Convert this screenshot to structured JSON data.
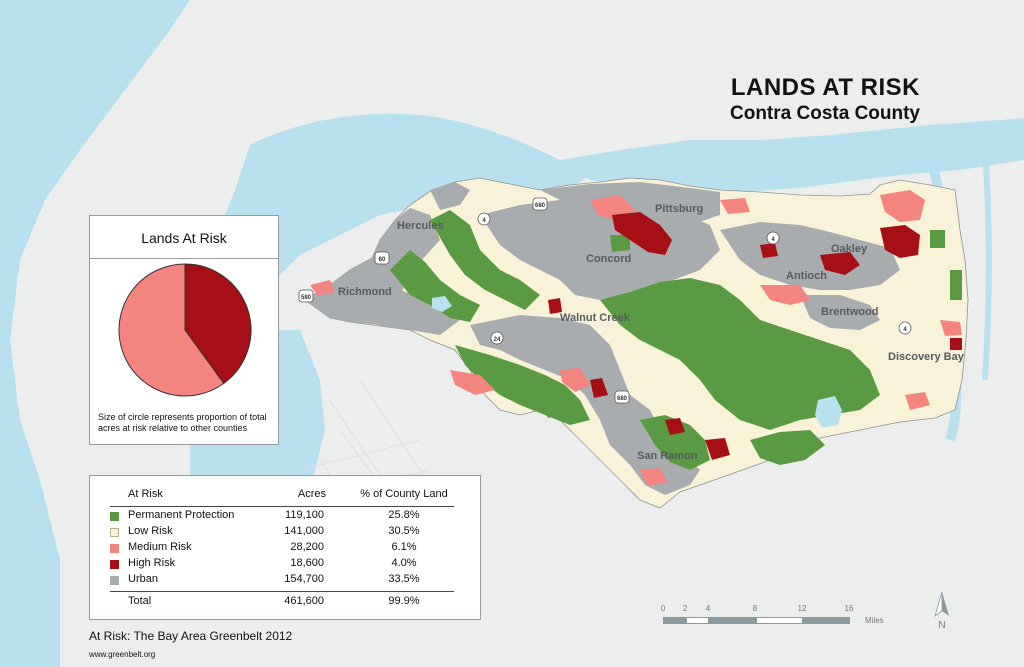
{
  "title": "LANDS AT RISK",
  "subtitle": "Contra Costa County",
  "pie_panel": {
    "title": "Lands At Risk",
    "note": "Size of circle represents proportion of total acres at risk relative to other counties",
    "slices": [
      {
        "category": "High Risk",
        "share": 0.4,
        "color": "#a50f15"
      },
      {
        "category": "Medium Risk",
        "share": 0.6,
        "color": "#f4847f"
      }
    ]
  },
  "legend": {
    "headers": {
      "label": "At Risk",
      "acres": "Acres",
      "pct": "% of County Land"
    },
    "rows": [
      {
        "label": "Permanent Protection",
        "acres": "119,100",
        "pct": "25.8%",
        "color": "#5a9a43"
      },
      {
        "label": "Low Risk",
        "acres": "141,000",
        "pct": "30.5%",
        "color": "#f8f3d8"
      },
      {
        "label": "Medium Risk",
        "acres": "28,200",
        "pct": "6.1%",
        "color": "#f4847f"
      },
      {
        "label": "High Risk",
        "acres": "18,600",
        "pct": "4.0%",
        "color": "#a50f15"
      },
      {
        "label": "Urban",
        "acres": "154,700",
        "pct": "33.5%",
        "color": "#a9acae"
      }
    ],
    "total": {
      "label": "Total",
      "acres": "461,600",
      "pct": "99.9%"
    }
  },
  "credit": "At Risk: The Bay Area Greenbelt 2012",
  "credit_url": "www.greenbelt.org",
  "scale": {
    "labels": [
      "0",
      "2",
      "4",
      "8",
      "12",
      "16"
    ],
    "unit": "Miles"
  },
  "north_label": "N",
  "places": {
    "hercules": "Hercules",
    "richmond": "Richmond",
    "pittsburg": "Pittsburg",
    "concord": "Concord",
    "antioch": "Antioch",
    "oakley": "Oakley",
    "walnut_creek": "Walnut Creek",
    "brentwood": "Brentwood",
    "discovery_bay": "Discovery Bay",
    "san_ramon": "San Ramon"
  },
  "highways": {
    "i80": "80",
    "i580": "580",
    "i680": "680",
    "sr4": "4",
    "sr24": "24"
  },
  "colors": {
    "water": "#b9e0ee",
    "land_outside": "#eceeee",
    "low_risk": "#f8f3d8",
    "urban": "#a9acae",
    "protected": "#5a9a43",
    "medium": "#f4847f",
    "high": "#a50f15"
  }
}
